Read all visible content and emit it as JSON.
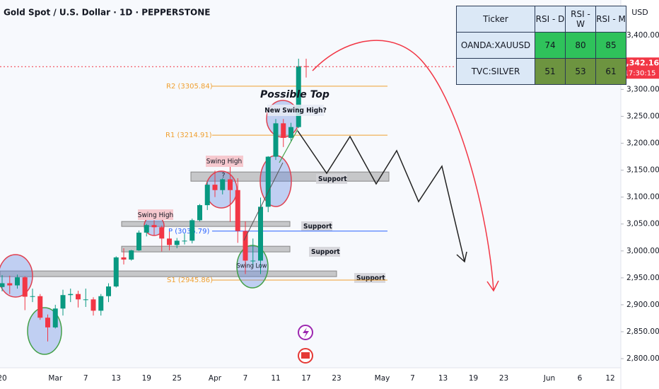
{
  "chart_data": {
    "type": "candlestick",
    "title": "Gold Spot / U.S. Dollar · 1D · PEPPERSTONE",
    "y_axis_label": "USD",
    "categories": [
      "20",
      null,
      null,
      null,
      null,
      null,
      null,
      "Mar",
      null,
      null,
      null,
      "7",
      null,
      null,
      null,
      "13",
      null,
      null,
      null,
      "19",
      null,
      null,
      null,
      "25",
      null,
      null,
      null,
      null,
      "Apr",
      null,
      null,
      null,
      "7",
      null,
      null,
      null,
      "11",
      null,
      null,
      null,
      "17",
      null,
      null,
      null,
      "23",
      null,
      null,
      null,
      null,
      null,
      "May",
      null,
      null,
      null,
      "7",
      null,
      null,
      null,
      "13",
      null,
      null,
      null,
      "19",
      null,
      null,
      null,
      "23",
      null,
      null,
      null,
      null,
      null,
      "Jun",
      null,
      null,
      null,
      "6",
      null,
      null,
      null,
      "12"
    ],
    "open": [
      2933,
      2940,
      2936,
      2951,
      2915,
      2916,
      2876,
      2858,
      2893,
      2918,
      2920,
      2910,
      2910,
      2889,
      2916,
      2934,
      2988,
      2984,
      3001,
      3034,
      3048,
      3044,
      3023,
      3011,
      3019,
      3019,
      3057,
      3085,
      3123,
      3113,
      3133,
      3113,
      3037,
      2982,
      2982,
      3082,
      3175,
      3237,
      3210,
      3230,
      3343,
      null,
      null,
      null,
      null,
      null,
      null,
      null,
      null,
      null,
      null,
      null,
      null,
      null,
      null,
      null,
      null,
      null,
      null,
      null,
      null,
      null,
      null,
      null,
      null,
      null,
      null,
      null,
      null,
      null,
      null,
      null,
      null,
      null,
      null,
      null,
      null,
      null,
      null,
      null,
      null
    ],
    "high": [
      2955,
      2954,
      2956,
      2953,
      2930,
      2920,
      2882,
      2900,
      2928,
      2930,
      2926,
      2930,
      2914,
      2920,
      2940,
      2990,
      3005,
      3002,
      3038,
      3050,
      3057,
      3047,
      3036,
      3024,
      3032,
      3060,
      3087,
      3128,
      3149,
      3135,
      3167,
      3135,
      3055,
      3023,
      3099,
      3176,
      3245,
      3245,
      3238,
      3357,
      3357,
      null,
      null,
      null,
      null,
      null,
      null,
      null,
      null,
      null,
      null,
      null,
      null,
      null,
      null,
      null,
      null,
      null,
      null,
      null,
      null,
      null,
      null,
      null,
      null,
      null,
      null,
      null,
      null,
      null,
      null,
      null,
      null,
      null,
      null,
      null,
      null,
      null,
      null,
      null,
      null
    ],
    "low": [
      2925,
      2920,
      2930,
      2890,
      2905,
      2872,
      2832,
      2856,
      2880,
      2905,
      2895,
      2896,
      2880,
      2880,
      2905,
      2932,
      2975,
      2982,
      3000,
      3027,
      3029,
      2999,
      3001,
      3005,
      3012,
      3014,
      3055,
      3076,
      3100,
      3105,
      3054,
      3015,
      2957,
      2970,
      2957,
      3072,
      3169,
      3193,
      3204,
      3228,
      3322,
      null,
      null,
      null,
      null,
      null,
      null,
      null,
      null,
      null,
      null,
      null,
      null,
      null,
      null,
      null,
      null,
      null,
      null,
      null,
      null,
      null,
      null,
      null,
      null,
      null,
      null,
      null,
      null,
      null,
      null,
      null,
      null,
      null,
      null,
      null,
      null,
      null,
      null,
      null,
      null
    ],
    "close": [
      2940,
      2936,
      2951,
      2915,
      2916,
      2876,
      2858,
      2893,
      2918,
      2920,
      2910,
      2910,
      2889,
      2916,
      2934,
      2988,
      2984,
      3001,
      3034,
      3048,
      3044,
      3023,
      3011,
      3019,
      3019,
      3057,
      3085,
      3123,
      3113,
      3133,
      3113,
      3037,
      2982,
      2982,
      3082,
      3175,
      3237,
      3210,
      3230,
      3343,
      3342.16,
      null,
      null,
      null,
      null,
      null,
      null,
      null,
      null,
      null,
      null,
      null,
      null,
      null,
      null,
      null,
      null,
      null,
      null,
      null,
      null,
      null,
      null,
      null,
      null,
      null,
      null,
      null,
      null,
      null,
      null,
      null,
      null,
      null,
      null,
      null,
      null,
      null,
      null,
      null,
      null
    ],
    "up_color": "#089981",
    "down_color": "#f23645",
    "ylim": [
      2783,
      3466
    ],
    "yticks": [
      {
        "value": 2800,
        "label": "2,800.00"
      },
      {
        "value": 2850,
        "label": "2,850.00"
      },
      {
        "value": 2900,
        "label": "2,900.00"
      },
      {
        "value": 2950,
        "label": "2,950.00"
      },
      {
        "value": 3000,
        "label": "3,000.00"
      },
      {
        "value": 3050,
        "label": "3,050.00"
      },
      {
        "value": 3100,
        "label": "3,100.00"
      },
      {
        "value": 3150,
        "label": "3,150.00"
      },
      {
        "value": 3200,
        "label": "3,200.00"
      },
      {
        "value": 3250,
        "label": "3,250.00"
      },
      {
        "value": 3300,
        "label": "3,300.00"
      },
      {
        "value": 3350,
        "label": "3,350.00"
      },
      {
        "value": 3400,
        "label": "3,400.00"
      }
    ],
    "grid": false,
    "last_price": {
      "value": 3342.16,
      "label": "3,342.16"
    },
    "countdown": "17:30:15",
    "levels": [
      {
        "label": "R2 (3305.84)",
        "value": 3305.84,
        "color": "#f0a030"
      },
      {
        "label": "R1 (3214.91)",
        "value": 3214.91,
        "color": "#f0a030"
      },
      {
        "label": "P (3036.79)",
        "value": 3036.79,
        "color": "#2962ff"
      },
      {
        "label": "S1 (2945.86)",
        "value": 2945.86,
        "color": "#f0a030"
      }
    ],
    "zones": [
      {
        "label": "Support",
        "low": 3129.5,
        "high": 3146.6
      },
      {
        "label": "Support",
        "low": 3045.5,
        "high": 3054.7
      },
      {
        "label": "Support",
        "low": 2998.2,
        "high": 3008.7
      },
      {
        "label": "Support",
        "low": 2952.3,
        "high": 2962.8
      }
    ],
    "annotations": [
      "Possible Top",
      "New Swing High?",
      "Swing High",
      "Swing High",
      "?",
      "Swing Low"
    ]
  },
  "rsi_table": {
    "header": [
      "Ticker",
      "RSI - D",
      "RSI - W",
      "RSI - M"
    ],
    "rows": [
      {
        "cells": [
          "OANDA:XAUUSD",
          "74",
          "80",
          "85"
        ],
        "color": "#2fc25b"
      },
      {
        "cells": [
          "TVC:SILVER",
          "51",
          "53",
          "61"
        ],
        "color": "#6d9440"
      }
    ]
  }
}
